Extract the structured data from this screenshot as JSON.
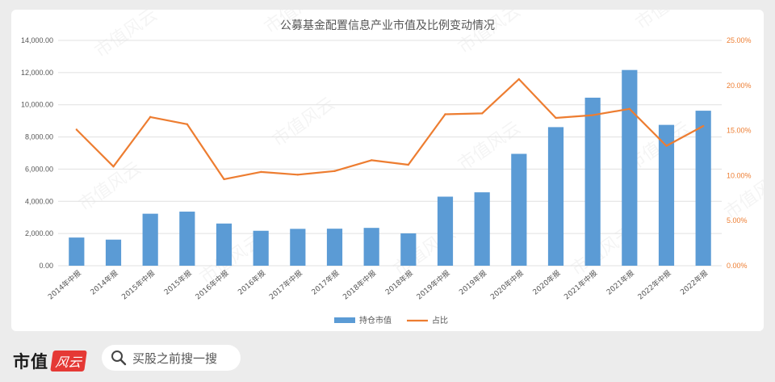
{
  "chart_data": {
    "type": "bar+line",
    "title": "公募基金配置信息产业市值及比例变动情况",
    "categories": [
      "2014年中报",
      "2014年报",
      "2015年中报",
      "2015年报",
      "2016年中报",
      "2016年报",
      "2017年中报",
      "2017年报",
      "2018年中报",
      "2018年报",
      "2019年中报",
      "2019年报",
      "2020年中报",
      "2020年报",
      "2021年中报",
      "2021年报",
      "2022年中报",
      "2022年报"
    ],
    "series": [
      {
        "name": "持仓市值",
        "type": "bar",
        "axis": "left",
        "color": "#5b9bd5",
        "values": [
          1750,
          1620,
          3230,
          3360,
          2620,
          2170,
          2290,
          2300,
          2350,
          2010,
          4290,
          4560,
          6950,
          8610,
          10440,
          12160,
          8750,
          9630
        ]
      },
      {
        "name": "占比",
        "type": "line",
        "axis": "right",
        "color": "#ed7d31",
        "values": [
          0.151,
          0.11,
          0.165,
          0.157,
          0.096,
          0.104,
          0.101,
          0.105,
          0.117,
          0.112,
          0.168,
          0.169,
          0.207,
          0.164,
          0.167,
          0.174,
          0.133,
          0.155
        ]
      }
    ],
    "y_left": {
      "min": 0,
      "max": 14000,
      "ticks": [
        "0.00",
        "2,000.00",
        "4,000.00",
        "6,000.00",
        "8,000.00",
        "10,000.00",
        "12,000.00",
        "14,000.00"
      ]
    },
    "y_right": {
      "min": 0,
      "max": 0.25,
      "ticks": [
        "0.00%",
        "5.00%",
        "10.00%",
        "15.00%",
        "20.00%",
        "25.00%"
      ]
    },
    "legend_position": "bottom",
    "grid": true
  },
  "watermark": "市值风云",
  "footer": {
    "brand_main": "市值",
    "brand_script": "风云",
    "search_text": "买股之前搜一搜"
  }
}
